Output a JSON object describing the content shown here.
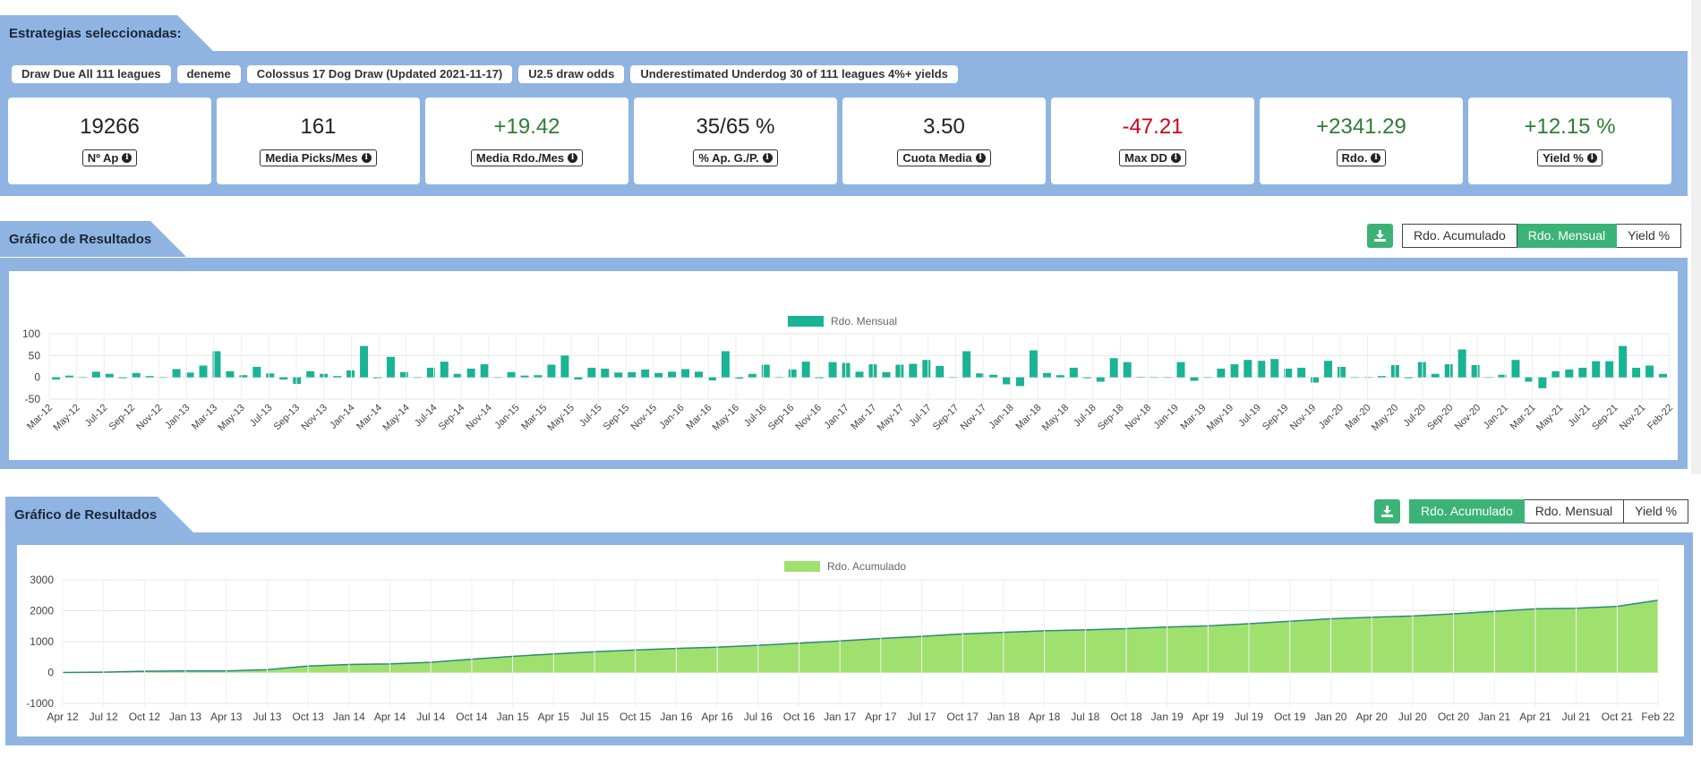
{
  "strategies": {
    "title": "Estrategias seleccionadas:",
    "tags": [
      "Draw Due All 111 leagues",
      "deneme",
      "Colossus 17 Dog Draw (Updated 2021-11-17)",
      "U2.5 draw odds",
      "Underestimated Underdog 30 of 111 leagues 4%+ yields"
    ]
  },
  "kpis": [
    {
      "value": "19266",
      "label": "Nº Ap",
      "tone": "neutral"
    },
    {
      "value": "161",
      "label": "Media Picks/Mes",
      "tone": "neutral"
    },
    {
      "value": "+19.42",
      "label": "Media Rdo./Mes",
      "tone": "pos"
    },
    {
      "value": "35/65 %",
      "label": "% Ap. G./P.",
      "tone": "neutral"
    },
    {
      "value": "3.50",
      "label": "Cuota Media",
      "tone": "neutral"
    },
    {
      "value": "-47.21",
      "label": "Max DD",
      "tone": "neg"
    },
    {
      "value": "+2341.29",
      "label": "Rdo.",
      "tone": "pos"
    },
    {
      "value": "+12.15 %",
      "label": "Yield %",
      "tone": "pos"
    }
  ],
  "chart1": {
    "title": "Gráfico de Resultados",
    "buttons": [
      "Rdo. Acumulado",
      "Rdo. Mensual",
      "Yield %"
    ],
    "active": "Rdo. Mensual"
  },
  "chart2": {
    "title": "Gráfico de Resultados",
    "buttons": [
      "Rdo. Acumulado",
      "Rdo. Mensual",
      "Yield %"
    ],
    "active": "Rdo. Acumulado"
  },
  "colors": {
    "bar": "#1ab394",
    "area_fill": "#a0e06e",
    "area_line": "#2a8a7a",
    "accent": "#3bb376",
    "band": "#8fb4e2"
  },
  "icons": {
    "download": "download-icon",
    "info": "info-icon"
  },
  "chart_data": [
    {
      "type": "bar",
      "legend": "Rdo. Mensual",
      "legend_position": "top-center",
      "ylim": [
        -50,
        100
      ],
      "yticks": [
        100,
        50,
        0,
        -50
      ],
      "grid": true,
      "xtick_labels": [
        "Mar-12",
        "May-12",
        "Jul-12",
        "Sep-12",
        "Nov-12",
        "Jan-13",
        "Mar-13",
        "May-13",
        "Jul-13",
        "Sep-13",
        "Nov-13",
        "Jan-14",
        "Mar-14",
        "May-14",
        "Jul-14",
        "Sep-14",
        "Nov-14",
        "Jan-15",
        "Mar-15",
        "May-15",
        "Jul-15",
        "Sep-15",
        "Nov-15",
        "Jan-16",
        "Mar-16",
        "May-16",
        "Jul-16",
        "Sep-16",
        "Nov-16",
        "Jan-17",
        "Mar-17",
        "May-17",
        "Jul-17",
        "Sep-17",
        "Nov-17",
        "Jan-18",
        "Mar-18",
        "May-18",
        "Jul-18",
        "Sep-18",
        "Nov-18",
        "Jan-19",
        "Mar-19",
        "May-19",
        "Jul-19",
        "Sep-19",
        "Nov-19",
        "Jan-20",
        "Mar-20",
        "May-20",
        "Jul-20",
        "Sep-20",
        "Nov-20",
        "Jan-21",
        "Mar-21",
        "May-21",
        "Jul-21",
        "Sep-21",
        "Nov-21",
        "Feb-22"
      ],
      "values": [
        -5,
        4,
        -1,
        13,
        8,
        -2,
        10,
        3,
        -1,
        19,
        11,
        27,
        60,
        14,
        5,
        24,
        9,
        -5,
        -15,
        14,
        8,
        3,
        16,
        72,
        -2,
        47,
        12,
        0,
        22,
        36,
        8,
        20,
        30,
        0,
        12,
        4,
        5,
        29,
        50,
        -5,
        22,
        20,
        11,
        12,
        18,
        10,
        13,
        19,
        13,
        -7,
        60,
        -3,
        8,
        29,
        0,
        18,
        36,
        -2,
        35,
        33,
        13,
        30,
        12,
        29,
        31,
        40,
        26,
        0,
        60,
        9,
        6,
        -16,
        -20,
        62,
        10,
        5,
        22,
        -2,
        -10,
        44,
        35,
        1,
        0,
        0,
        35,
        -8,
        0,
        20,
        30,
        40,
        38,
        42,
        20,
        22,
        -12,
        38,
        24,
        0,
        0,
        3,
        28,
        -2,
        35,
        8,
        30,
        64,
        28,
        0,
        6,
        40,
        -10,
        -25,
        14,
        18,
        22,
        37,
        37,
        72,
        22,
        27,
        8
      ]
    },
    {
      "type": "area",
      "legend": "Rdo. Acumulado",
      "legend_position": "top-center",
      "ylim": [
        -1000,
        3000
      ],
      "yticks": [
        3000,
        2000,
        1000,
        0,
        -1000
      ],
      "grid": true,
      "xtick_labels": [
        "Apr 12",
        "Jul 12",
        "Oct 12",
        "Jan 13",
        "Apr 13",
        "Jul 13",
        "Oct 13",
        "Jan 14",
        "Apr 14",
        "Jul 14",
        "Oct 14",
        "Jan 15",
        "Apr 15",
        "Jul 15",
        "Oct 15",
        "Jan 16",
        "Apr 16",
        "Jul 16",
        "Oct 16",
        "Jan 17",
        "Apr 17",
        "Jul 17",
        "Oct 17",
        "Jan 18",
        "Apr 18",
        "Jul 18",
        "Oct 18",
        "Jan 19",
        "Apr 19",
        "Jul 19",
        "Oct 19",
        "Jan 20",
        "Apr 20",
        "Jul 20",
        "Oct 20",
        "Jan 21",
        "Apr 21",
        "Jul 21",
        "Oct 21",
        "Feb 22"
      ],
      "values": [
        0,
        10,
        40,
        50,
        50,
        90,
        210,
        260,
        280,
        330,
        430,
        520,
        600,
        670,
        730,
        780,
        820,
        880,
        950,
        1020,
        1100,
        1170,
        1250,
        1300,
        1350,
        1380,
        1420,
        1470,
        1510,
        1580,
        1660,
        1740,
        1790,
        1830,
        1900,
        1980,
        2060,
        2080,
        2140,
        2341
      ]
    }
  ]
}
